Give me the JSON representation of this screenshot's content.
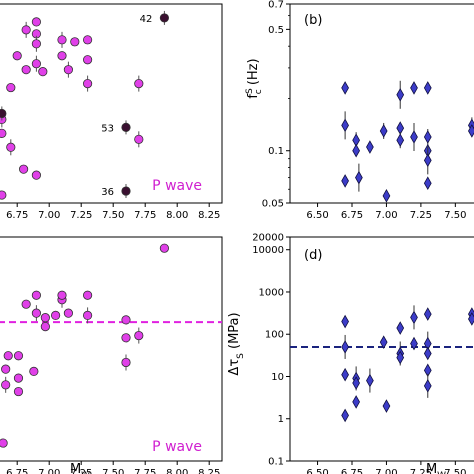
{
  "colors": {
    "magenta": "#e040e8",
    "magenta_edge": "#333333",
    "dark": "#3a1030",
    "blue": "#3c3cc8",
    "blue_edge": "#101040",
    "p_wave": "#d020d0",
    "dash_magenta": "#e020e0",
    "dash_blue": "#1a237e"
  },
  "chart_data": [
    {
      "panel": "a",
      "type": "scatter",
      "xlabel": "",
      "xlim": [
        6.6,
        8.35
      ],
      "xticks": [
        "6.75",
        "7.00",
        "7.25",
        "7.50",
        "7.75",
        "8.00",
        "8.25"
      ],
      "ylim": [
        0,
        100
      ],
      "annotation_text": "P wave",
      "points": [
        {
          "x": 6.63,
          "y": 42
        },
        {
          "x": 6.63,
          "y": 35
        },
        {
          "x": 6.63,
          "y": 4
        },
        {
          "x": 6.7,
          "y": 28
        },
        {
          "x": 6.7,
          "y": 58
        },
        {
          "x": 6.75,
          "y": 74
        },
        {
          "x": 6.82,
          "y": 87
        },
        {
          "x": 6.82,
          "y": 67
        },
        {
          "x": 6.8,
          "y": 17
        },
        {
          "x": 6.9,
          "y": 70
        },
        {
          "x": 6.9,
          "y": 85
        },
        {
          "x": 6.9,
          "y": 91
        },
        {
          "x": 6.9,
          "y": 80
        },
        {
          "x": 6.9,
          "y": 14
        },
        {
          "x": 6.95,
          "y": 66
        },
        {
          "x": 7.1,
          "y": 82
        },
        {
          "x": 7.1,
          "y": 74
        },
        {
          "x": 7.2,
          "y": 81
        },
        {
          "x": 7.15,
          "y": 67
        },
        {
          "x": 7.3,
          "y": 82
        },
        {
          "x": 7.3,
          "y": 72
        },
        {
          "x": 7.3,
          "y": 60
        }
      ],
      "highlighted": [
        {
          "x": 7.9,
          "y": 93,
          "label": "42"
        },
        {
          "x": 7.6,
          "y": 38,
          "label": "53"
        },
        {
          "x": 7.6,
          "y": 6,
          "label": "36"
        },
        {
          "x": 6.63,
          "y": 45,
          "label": ""
        }
      ],
      "extra_points": [
        {
          "x": 7.7,
          "y": 32
        },
        {
          "x": 7.7,
          "y": 60
        }
      ]
    },
    {
      "panel": "b",
      "type": "scatter",
      "title": "(b)",
      "ylabel": "f_c^S (Hz)",
      "yscale": "log",
      "xlim": [
        6.3,
        7.65
      ],
      "ylim": [
        0.05,
        0.7
      ],
      "xticks": [
        "6.50",
        "6.75",
        "7.00",
        "7.25",
        "7.50"
      ],
      "yticks": [
        "0.05",
        "0.1",
        "0.5",
        "0.7"
      ],
      "points": [
        {
          "x": 6.7,
          "y": 0.23
        },
        {
          "x": 6.7,
          "y": 0.14
        },
        {
          "x": 6.7,
          "y": 0.067
        },
        {
          "x": 6.78,
          "y": 0.115
        },
        {
          "x": 6.78,
          "y": 0.1
        },
        {
          "x": 6.8,
          "y": 0.07
        },
        {
          "x": 6.88,
          "y": 0.105
        },
        {
          "x": 6.98,
          "y": 0.13
        },
        {
          "x": 7.0,
          "y": 0.055
        },
        {
          "x": 7.1,
          "y": 0.21
        },
        {
          "x": 7.1,
          "y": 0.135
        },
        {
          "x": 7.1,
          "y": 0.115
        },
        {
          "x": 7.2,
          "y": 0.23
        },
        {
          "x": 7.2,
          "y": 0.12
        },
        {
          "x": 7.3,
          "y": 0.23
        },
        {
          "x": 7.3,
          "y": 0.12
        },
        {
          "x": 7.3,
          "y": 0.1
        },
        {
          "x": 7.3,
          "y": 0.088
        },
        {
          "x": 7.3,
          "y": 0.065
        },
        {
          "x": 7.62,
          "y": 0.14
        },
        {
          "x": 7.62,
          "y": 0.13
        }
      ]
    },
    {
      "panel": "c",
      "type": "scatter",
      "xlabel": "M_W",
      "xlim": [
        6.6,
        8.35
      ],
      "xticks": [
        "6.75",
        "7.00",
        "7.25",
        "7.50",
        "7.75",
        "8.00",
        "8.25"
      ],
      "ylim": [
        0,
        100
      ],
      "annotation_text": "P wave",
      "dashed_y": 62,
      "points": [
        {
          "x": 7.9,
          "y": 95
        },
        {
          "x": 6.9,
          "y": 74
        },
        {
          "x": 7.1,
          "y": 72
        },
        {
          "x": 7.1,
          "y": 74
        },
        {
          "x": 7.3,
          "y": 74
        },
        {
          "x": 6.82,
          "y": 70
        },
        {
          "x": 6.9,
          "y": 66
        },
        {
          "x": 6.97,
          "y": 64
        },
        {
          "x": 7.05,
          "y": 65
        },
        {
          "x": 7.15,
          "y": 66
        },
        {
          "x": 7.3,
          "y": 65
        },
        {
          "x": 6.97,
          "y": 60
        },
        {
          "x": 7.6,
          "y": 63
        },
        {
          "x": 7.6,
          "y": 55
        },
        {
          "x": 7.7,
          "y": 56
        },
        {
          "x": 6.68,
          "y": 47
        },
        {
          "x": 6.76,
          "y": 47
        },
        {
          "x": 6.66,
          "y": 41
        },
        {
          "x": 6.66,
          "y": 34
        },
        {
          "x": 6.76,
          "y": 37
        },
        {
          "x": 6.76,
          "y": 31
        },
        {
          "x": 6.88,
          "y": 40
        },
        {
          "x": 7.6,
          "y": 44
        },
        {
          "x": 6.64,
          "y": 8
        }
      ]
    },
    {
      "panel": "d",
      "type": "scatter",
      "title": "(d)",
      "xlabel": "M_W",
      "ylabel": "Δτ_S (MPa)",
      "yscale": "log",
      "xlim": [
        6.3,
        7.65
      ],
      "ylim": [
        0.1,
        20000
      ],
      "xticks": [
        "6.50",
        "6.75",
        "7.00",
        "7.25",
        "7.50"
      ],
      "yticks": [
        "0.1",
        "1",
        "10",
        "100",
        "1000",
        "10000",
        "20000"
      ],
      "dashed_y": 50,
      "points": [
        {
          "x": 6.7,
          "y": 200
        },
        {
          "x": 6.7,
          "y": 50
        },
        {
          "x": 6.7,
          "y": 11
        },
        {
          "x": 6.7,
          "y": 1.2
        },
        {
          "x": 6.78,
          "y": 9
        },
        {
          "x": 6.78,
          "y": 7
        },
        {
          "x": 6.78,
          "y": 2.5
        },
        {
          "x": 6.88,
          "y": 8
        },
        {
          "x": 6.98,
          "y": 65
        },
        {
          "x": 7.0,
          "y": 2
        },
        {
          "x": 7.1,
          "y": 35
        },
        {
          "x": 7.1,
          "y": 28
        },
        {
          "x": 7.1,
          "y": 140
        },
        {
          "x": 7.2,
          "y": 250
        },
        {
          "x": 7.2,
          "y": 60
        },
        {
          "x": 7.3,
          "y": 300
        },
        {
          "x": 7.3,
          "y": 60
        },
        {
          "x": 7.3,
          "y": 35
        },
        {
          "x": 7.3,
          "y": 14
        },
        {
          "x": 7.3,
          "y": 6
        },
        {
          "x": 7.62,
          "y": 300
        },
        {
          "x": 7.62,
          "y": 230
        }
      ]
    }
  ]
}
